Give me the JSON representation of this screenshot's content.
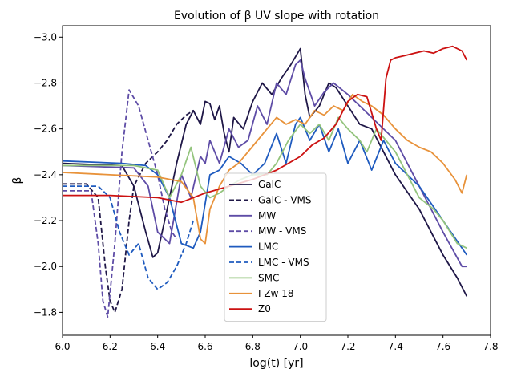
{
  "chart_data": {
    "type": "line",
    "title": "Evolution of β UV slope with rotation",
    "xlabel": "log(t) [yr]",
    "ylabel": "β",
    "xlim": [
      6.0,
      7.8
    ],
    "ylim": [
      -1.7,
      -3.05
    ],
    "x_ticks": [
      6.0,
      6.2,
      6.4,
      6.6,
      6.8,
      7.0,
      7.2,
      7.4,
      7.6,
      7.8
    ],
    "x_tick_labels": [
      "6.0",
      "6.2",
      "6.4",
      "6.6",
      "6.8",
      "7.0",
      "7.2",
      "7.4",
      "7.6",
      "7.8"
    ],
    "y_ticks": [
      -3.0,
      -2.8,
      -2.6,
      -2.4,
      -2.2,
      -2.0,
      -1.8
    ],
    "y_tick_labels": [
      "−3.0",
      "−2.8",
      "−2.6",
      "−2.4",
      "−2.2",
      "−2.0",
      "−1.8"
    ],
    "legend_position": "center",
    "series": [
      {
        "name": "GalC",
        "color": "#1f1747",
        "dash": "solid",
        "x": [
          6.0,
          6.25,
          6.3,
          6.35,
          6.38,
          6.4,
          6.44,
          6.48,
          6.52,
          6.55,
          6.58,
          6.6,
          6.62,
          6.64,
          6.66,
          6.68,
          6.7,
          6.72,
          6.76,
          6.8,
          6.84,
          6.88,
          6.92,
          6.96,
          7.0,
          7.02,
          7.04,
          7.08,
          7.12,
          7.15,
          7.2,
          7.25,
          7.3,
          7.4,
          7.5,
          7.6,
          7.66,
          7.7
        ],
        "y": [
          -2.45,
          -2.44,
          -2.35,
          -2.15,
          -2.04,
          -2.06,
          -2.25,
          -2.45,
          -2.62,
          -2.68,
          -2.62,
          -2.72,
          -2.71,
          -2.64,
          -2.7,
          -2.58,
          -2.5,
          -2.65,
          -2.6,
          -2.72,
          -2.8,
          -2.75,
          -2.82,
          -2.88,
          -2.95,
          -2.75,
          -2.65,
          -2.7,
          -2.8,
          -2.78,
          -2.7,
          -2.62,
          -2.6,
          -2.4,
          -2.25,
          -2.05,
          -1.95,
          -1.87
        ]
      },
      {
        "name": "GalC - VMS",
        "color": "#1f1747",
        "dash": "dashed",
        "x": [
          6.0,
          6.1,
          6.15,
          6.18,
          6.2,
          6.22,
          6.25,
          6.28,
          6.3,
          6.35,
          6.4,
          6.44,
          6.48,
          6.52,
          6.55
        ],
        "y": [
          -2.36,
          -2.36,
          -2.3,
          -2.0,
          -1.85,
          -1.8,
          -1.9,
          -2.2,
          -2.35,
          -2.45,
          -2.5,
          -2.55,
          -2.62,
          -2.66,
          -2.68
        ]
      },
      {
        "name": "MW",
        "color": "#5e4ca6",
        "dash": "solid",
        "x": [
          6.0,
          6.3,
          6.36,
          6.4,
          6.45,
          6.5,
          6.54,
          6.58,
          6.6,
          6.62,
          6.66,
          6.7,
          6.74,
          6.78,
          6.82,
          6.86,
          6.9,
          6.94,
          6.98,
          7.0,
          7.02,
          7.06,
          7.1,
          7.14,
          7.2,
          7.3,
          7.4,
          7.5,
          7.6,
          7.68,
          7.7
        ],
        "y": [
          -2.44,
          -2.43,
          -2.35,
          -2.15,
          -2.1,
          -2.4,
          -2.3,
          -2.48,
          -2.45,
          -2.55,
          -2.45,
          -2.6,
          -2.52,
          -2.55,
          -2.7,
          -2.62,
          -2.8,
          -2.75,
          -2.88,
          -2.9,
          -2.82,
          -2.7,
          -2.76,
          -2.8,
          -2.75,
          -2.65,
          -2.55,
          -2.35,
          -2.15,
          -2.0,
          -2.0
        ]
      },
      {
        "name": "MW - VMS",
        "color": "#5e4ca6",
        "dash": "dashed",
        "x": [
          6.0,
          6.12,
          6.15,
          6.17,
          6.19,
          6.22,
          6.25,
          6.28,
          6.32,
          6.36,
          6.4,
          6.43,
          6.46,
          6.48
        ],
        "y": [
          -2.33,
          -2.33,
          -2.1,
          -1.85,
          -1.78,
          -2.1,
          -2.5,
          -2.77,
          -2.7,
          -2.55,
          -2.4,
          -2.25,
          -2.15,
          -2.12
        ]
      },
      {
        "name": "LMC",
        "color": "#1f5bbf",
        "dash": "solid",
        "x": [
          6.0,
          6.25,
          6.35,
          6.4,
          6.45,
          6.5,
          6.55,
          6.58,
          6.62,
          6.66,
          6.7,
          6.75,
          6.8,
          6.85,
          6.9,
          6.94,
          6.98,
          7.0,
          7.04,
          7.08,
          7.12,
          7.16,
          7.2,
          7.25,
          7.3,
          7.35,
          7.4,
          7.5,
          7.6,
          7.7
        ],
        "y": [
          -2.46,
          -2.45,
          -2.44,
          -2.4,
          -2.3,
          -2.1,
          -2.08,
          -2.15,
          -2.4,
          -2.42,
          -2.48,
          -2.45,
          -2.4,
          -2.45,
          -2.58,
          -2.45,
          -2.62,
          -2.65,
          -2.55,
          -2.62,
          -2.5,
          -2.6,
          -2.45,
          -2.55,
          -2.42,
          -2.55,
          -2.45,
          -2.35,
          -2.2,
          -2.05
        ]
      },
      {
        "name": "LMC - VMS",
        "color": "#1f5bbf",
        "dash": "dashed",
        "x": [
          6.0,
          6.15,
          6.2,
          6.24,
          6.28,
          6.32,
          6.36,
          6.4,
          6.44,
          6.48,
          6.52,
          6.55
        ],
        "y": [
          -2.35,
          -2.35,
          -2.3,
          -2.15,
          -2.05,
          -2.1,
          -1.95,
          -1.9,
          -1.93,
          -2.0,
          -2.1,
          -2.2
        ]
      },
      {
        "name": "SMC",
        "color": "#93c47d",
        "dash": "solid",
        "x": [
          6.0,
          6.3,
          6.4,
          6.45,
          6.5,
          6.54,
          6.58,
          6.62,
          6.66,
          6.7,
          6.75,
          6.8,
          6.86,
          6.9,
          6.95,
          7.0,
          7.04,
          7.08,
          7.12,
          7.16,
          7.2,
          7.25,
          7.28,
          7.32,
          7.36,
          7.4,
          7.5,
          7.56,
          7.6,
          7.66,
          7.7
        ],
        "y": [
          -2.44,
          -2.44,
          -2.42,
          -2.3,
          -2.4,
          -2.52,
          -2.35,
          -2.3,
          -2.32,
          -2.35,
          -2.38,
          -2.4,
          -2.4,
          -2.45,
          -2.55,
          -2.62,
          -2.58,
          -2.62,
          -2.55,
          -2.65,
          -2.6,
          -2.55,
          -2.5,
          -2.6,
          -2.55,
          -2.5,
          -2.3,
          -2.25,
          -2.2,
          -2.1,
          -2.08
        ]
      },
      {
        "name": "I Zw 18",
        "color": "#e8923a",
        "dash": "solid",
        "x": [
          6.0,
          6.2,
          6.4,
          6.5,
          6.55,
          6.58,
          6.6,
          6.62,
          6.66,
          6.7,
          6.74,
          6.78,
          6.82,
          6.86,
          6.9,
          6.94,
          6.98,
          7.02,
          7.06,
          7.1,
          7.14,
          7.18,
          7.22,
          7.26,
          7.3,
          7.35,
          7.4,
          7.45,
          7.5,
          7.55,
          7.6,
          7.65,
          7.68,
          7.7
        ],
        "y": [
          -2.41,
          -2.4,
          -2.39,
          -2.37,
          -2.3,
          -2.12,
          -2.1,
          -2.25,
          -2.35,
          -2.42,
          -2.45,
          -2.5,
          -2.55,
          -2.6,
          -2.65,
          -2.62,
          -2.64,
          -2.62,
          -2.68,
          -2.66,
          -2.7,
          -2.68,
          -2.75,
          -2.72,
          -2.7,
          -2.66,
          -2.6,
          -2.55,
          -2.52,
          -2.5,
          -2.45,
          -2.38,
          -2.32,
          -2.4
        ]
      },
      {
        "name": "Z0",
        "color": "#cc1111",
        "dash": "solid",
        "x": [
          6.0,
          6.2,
          6.4,
          6.5,
          6.6,
          6.7,
          6.8,
          6.9,
          7.0,
          7.05,
          7.1,
          7.15,
          7.2,
          7.24,
          7.28,
          7.32,
          7.34,
          7.36,
          7.38,
          7.4,
          7.44,
          7.48,
          7.52,
          7.56,
          7.6,
          7.64,
          7.68,
          7.7
        ],
        "y": [
          -2.31,
          -2.31,
          -2.3,
          -2.28,
          -2.32,
          -2.35,
          -2.38,
          -2.42,
          -2.48,
          -2.53,
          -2.56,
          -2.62,
          -2.72,
          -2.75,
          -2.74,
          -2.6,
          -2.55,
          -2.82,
          -2.9,
          -2.91,
          -2.92,
          -2.93,
          -2.94,
          -2.93,
          -2.95,
          -2.96,
          -2.94,
          -2.9
        ]
      }
    ]
  }
}
